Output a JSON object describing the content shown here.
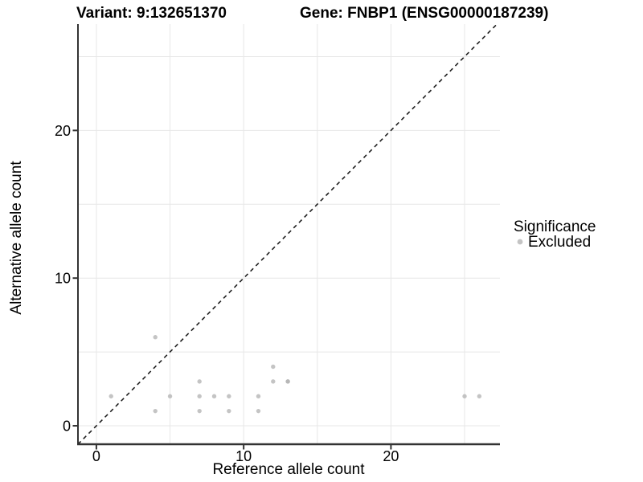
{
  "chart_data": {
    "type": "scatter",
    "title_variant": "Variant: 9:132651370",
    "title_gene": "Gene: FNBP1 (ENSG00000187239)",
    "xlabel": "Reference allele count",
    "ylabel": "Alternative allele count",
    "xlim": [
      -1.25,
      27.4
    ],
    "ylim": [
      -1.25,
      27.2
    ],
    "x_major_ticks": [
      0,
      10,
      20
    ],
    "y_major_ticks": [
      0,
      10,
      20
    ],
    "x_minor_gridlines": [
      5,
      15,
      25
    ],
    "y_minor_gridlines": [
      5,
      15,
      25
    ],
    "grid": true,
    "identity_line": {
      "equation": "y = x",
      "style": "dashed",
      "color": "#1f1f1f"
    },
    "series": [
      {
        "name": "Excluded",
        "color": "#b3b3b3",
        "points": [
          [
            1,
            2
          ],
          [
            4,
            1
          ],
          [
            4,
            6
          ],
          [
            5,
            2
          ],
          [
            7,
            1
          ],
          [
            7,
            2
          ],
          [
            7,
            3
          ],
          [
            8,
            2
          ],
          [
            9,
            1
          ],
          [
            9,
            2
          ],
          [
            11,
            1
          ],
          [
            11,
            2
          ],
          [
            12,
            3
          ],
          [
            12,
            4
          ],
          [
            13,
            3
          ],
          [
            13,
            3
          ],
          [
            25,
            2
          ],
          [
            26,
            2
          ]
        ]
      }
    ],
    "legend": {
      "title": "Significance",
      "position": "right",
      "items": [
        {
          "label": "Excluded",
          "color": "#b3b3b3"
        }
      ]
    }
  },
  "colors": {
    "background": "#ffffff",
    "gridline": "#e7e7e7",
    "axis_line": "#333333",
    "tick_mark": "#333333",
    "text": "#000000",
    "point": "#b3b3b3",
    "identity_line": "#1f1f1f"
  }
}
